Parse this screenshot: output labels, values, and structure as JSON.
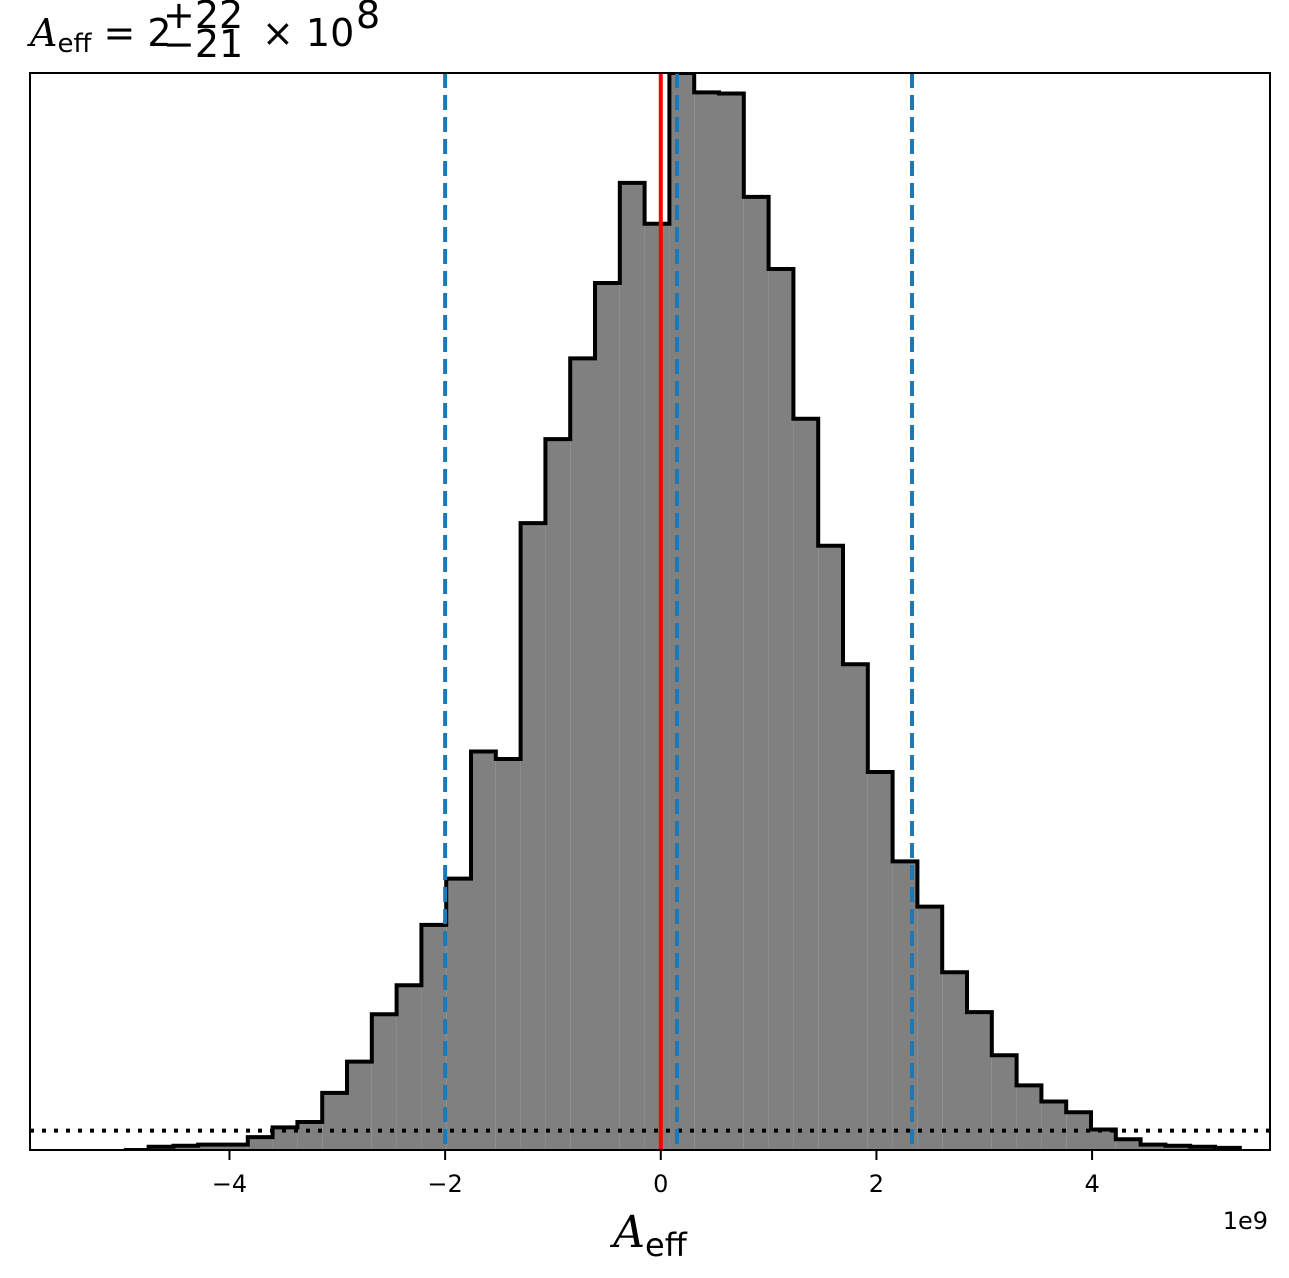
{
  "chart_data": {
    "type": "histogram",
    "title": {
      "symbol": "A",
      "symbol_sub": "eff",
      "base": "2",
      "sup": "+22",
      "sub": "−21",
      "times": "× 10",
      "exponent": "8"
    },
    "xlabel": {
      "symbol": "A",
      "sub": "eff"
    },
    "ylabel": "",
    "x_offset_label": "1e9",
    "xlim": [
      -5.85,
      5.65
    ],
    "ylim": [
      0,
      1.0
    ],
    "xticks": [
      -4,
      -2,
      0,
      2,
      4
    ],
    "xtick_labels": [
      "−4",
      "−2",
      "0",
      "2",
      "4"
    ],
    "show_yticks": false,
    "grid": false,
    "bin_edges": [
      -4.98,
      -4.75,
      -4.52,
      -4.29,
      -4.06,
      -3.83,
      -3.6,
      -3.37,
      -3.14,
      -2.91,
      -2.68,
      -2.45,
      -2.22,
      -1.99,
      -1.76,
      -1.53,
      -1.3,
      -1.07,
      -0.84,
      -0.61,
      -0.38,
      -0.15,
      0.08,
      0.31,
      0.54,
      0.77,
      1.0,
      1.23,
      1.46,
      1.69,
      1.92,
      2.15,
      2.38,
      2.61,
      2.84,
      3.07,
      3.3,
      3.53,
      3.76,
      3.99,
      4.22,
      4.45,
      4.68,
      4.91,
      5.14,
      5.37
    ],
    "counts": [
      0.0,
      0.003,
      0.004,
      0.005,
      0.005,
      0.012,
      0.021,
      0.026,
      0.053,
      0.082,
      0.126,
      0.153,
      0.209,
      0.252,
      0.37,
      0.363,
      0.582,
      0.66,
      0.735,
      0.805,
      0.898,
      0.86,
      1.0,
      0.982,
      0.981,
      0.885,
      0.818,
      0.679,
      0.561,
      0.451,
      0.351,
      0.268,
      0.226,
      0.165,
      0.128,
      0.088,
      0.06,
      0.045,
      0.035,
      0.019,
      0.01,
      0.005,
      0.004,
      0.003,
      0.002
    ],
    "fill_color": "#808080",
    "edge_color": "#000000",
    "vlines": [
      {
        "x": 0.0,
        "color": "#ff0000",
        "style": "solid"
      },
      {
        "x": -2.0,
        "color": "#1f77b4",
        "style": "dashed"
      },
      {
        "x": 0.15,
        "color": "#1f77b4",
        "style": "dashed"
      },
      {
        "x": 2.33,
        "color": "#1f77b4",
        "style": "dashed"
      }
    ],
    "hline": {
      "y": 0.018,
      "color": "#000000",
      "style": "dotted"
    }
  }
}
